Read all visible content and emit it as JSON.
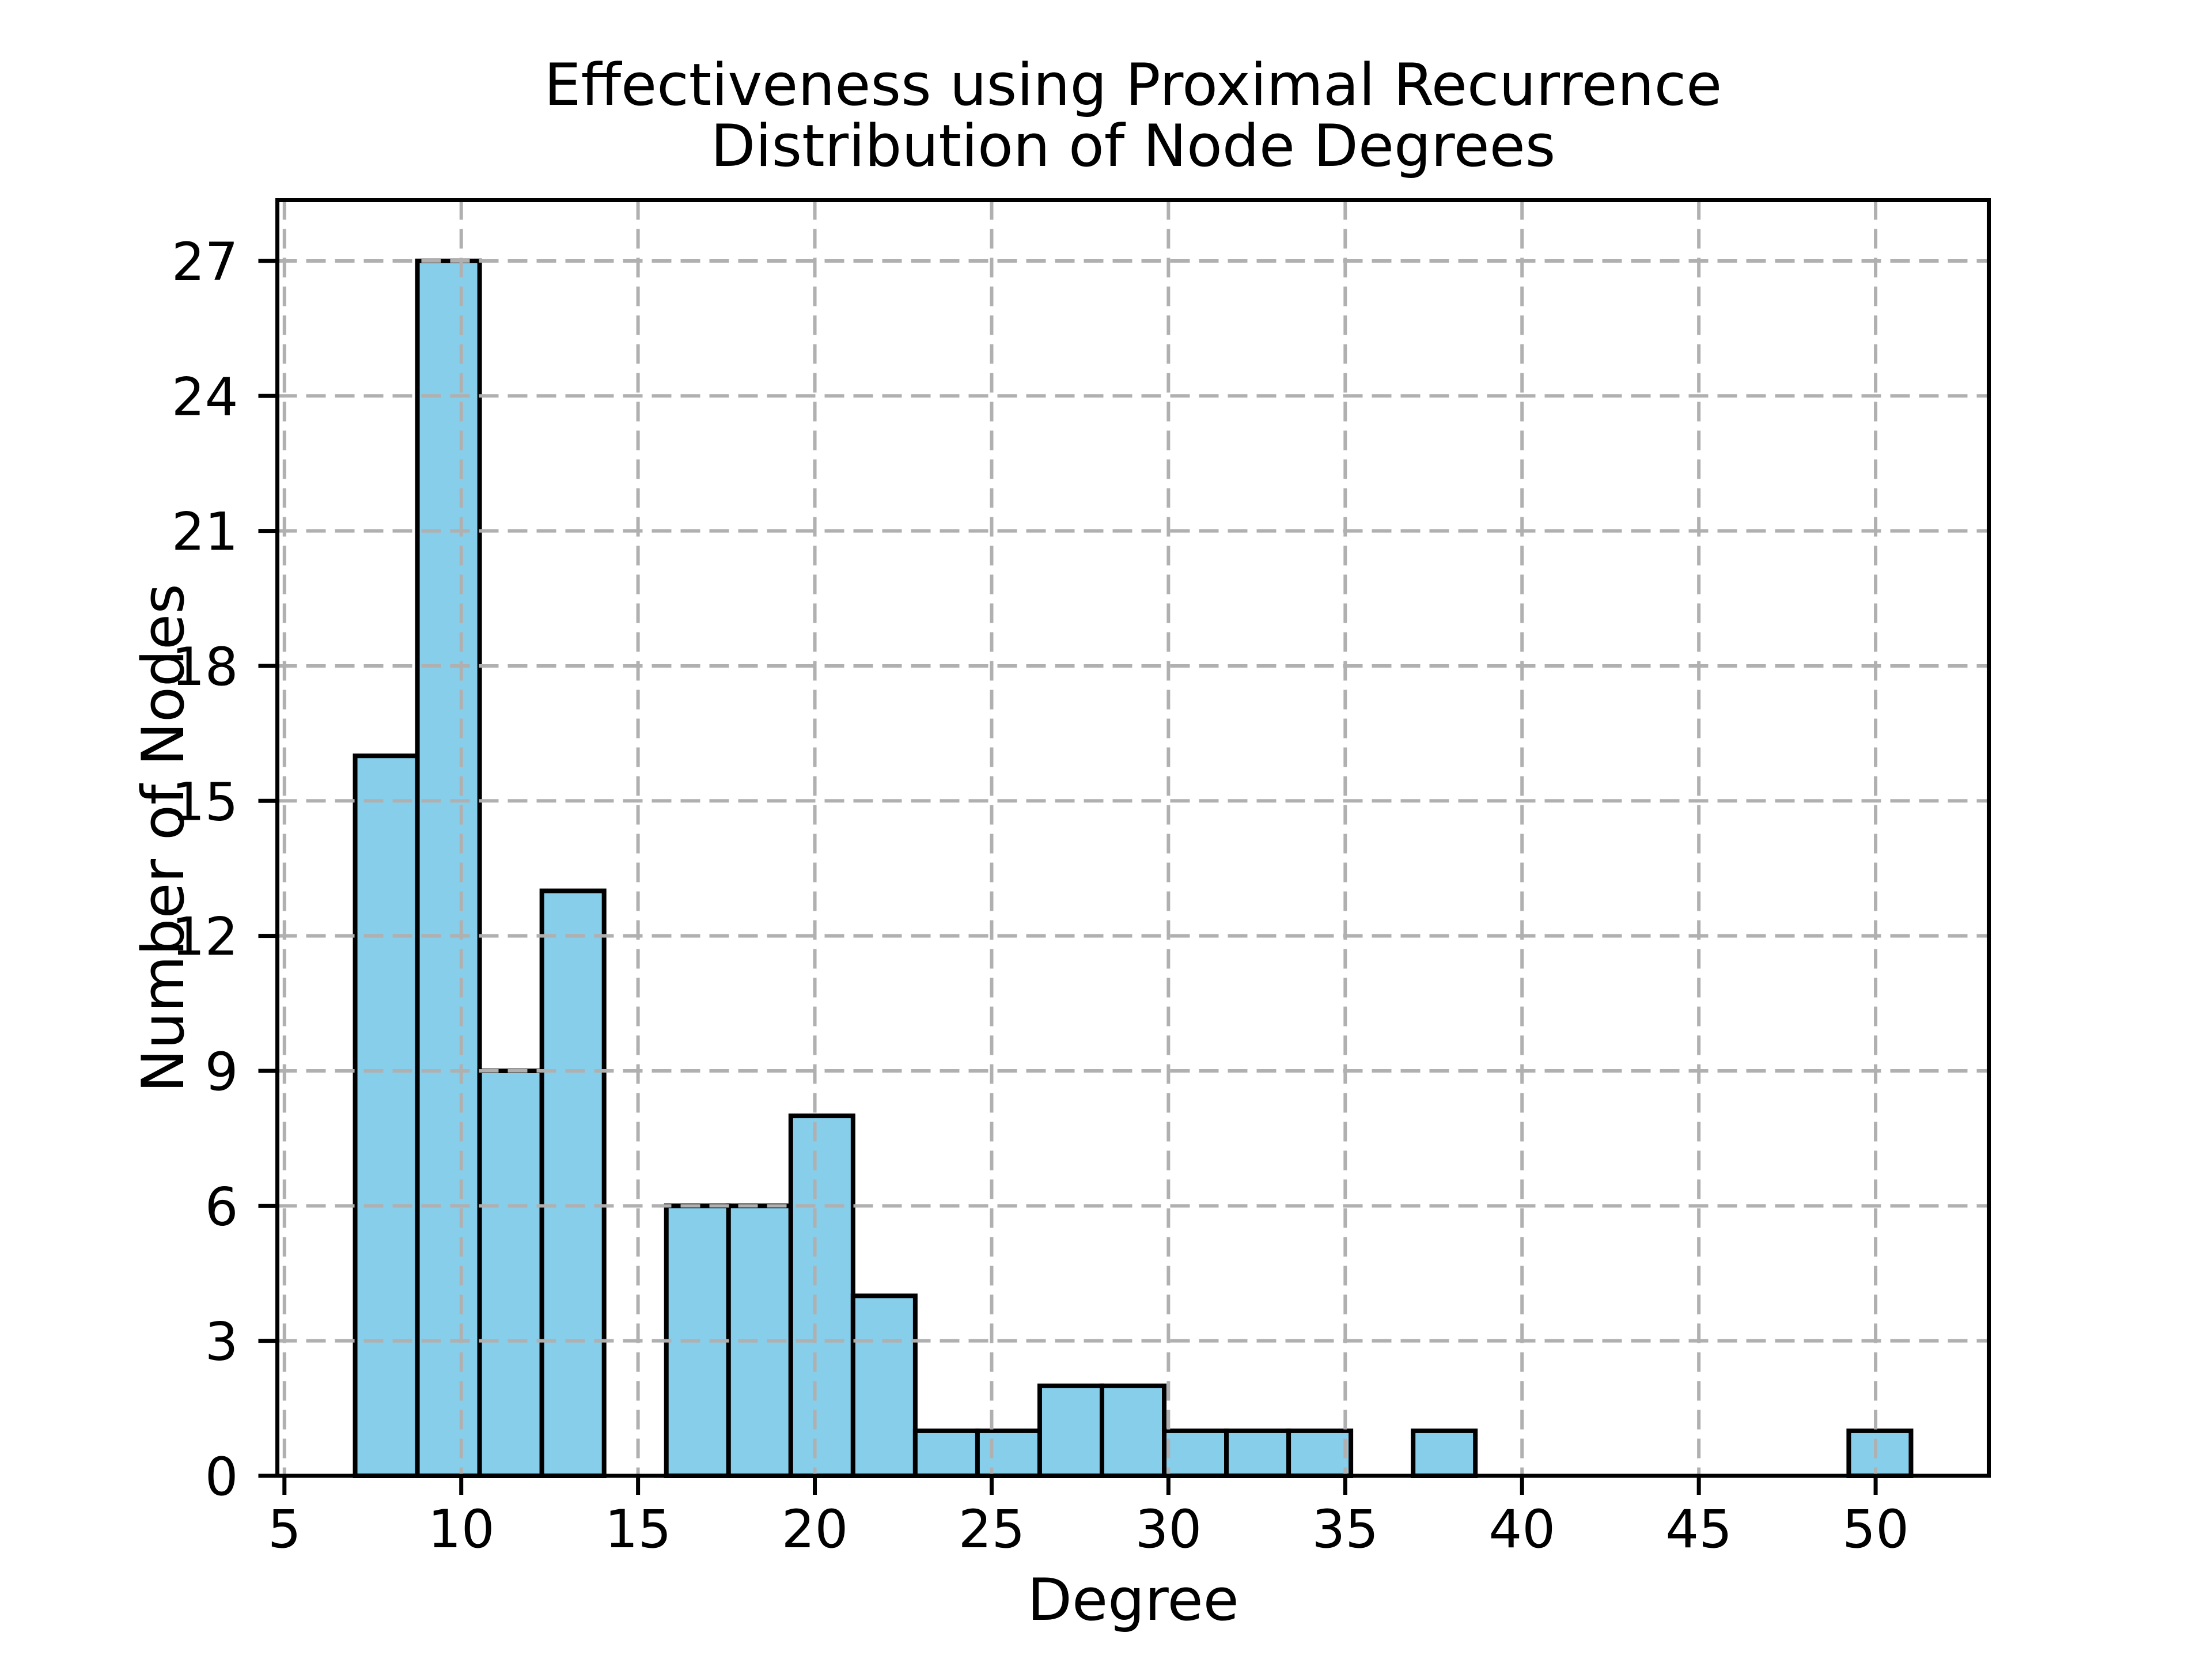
{
  "title": {
    "line1": "Effectiveness using Proximal Recurrence",
    "line2": "Distribution of Node Degrees"
  },
  "chart_data": {
    "type": "bar",
    "title": "Effectiveness using Proximal Recurrence\nDistribution of Node Degrees",
    "xlabel": "Degree",
    "ylabel": "Number of Nodes",
    "xlim": [
      4.8,
      53.2
    ],
    "ylim": [
      0,
      28.35
    ],
    "xticks": [
      5,
      10,
      15,
      20,
      25,
      30,
      35,
      40,
      45,
      50
    ],
    "yticks": [
      0,
      3,
      6,
      9,
      12,
      15,
      18,
      21,
      24,
      27
    ],
    "grid": true,
    "grid_linestyle": "dashed",
    "legend_position": "none",
    "bin_edges": [
      7.0,
      8.76,
      10.52,
      12.28,
      14.04,
      15.8,
      17.56,
      19.32,
      21.08,
      22.84,
      24.6,
      26.36,
      28.12,
      29.88,
      31.64,
      33.4,
      35.16,
      36.92,
      38.68,
      40.44,
      42.2,
      43.96,
      45.72,
      47.48,
      49.24,
      51.0
    ],
    "counts": [
      16,
      27,
      9,
      13,
      0,
      6,
      6,
      8,
      4,
      1,
      1,
      2,
      2,
      1,
      1,
      1,
      0,
      1,
      0,
      0,
      0,
      0,
      0,
      0,
      1
    ],
    "total_nodes": 100,
    "colors": {
      "bar_fill": "#87CEEB",
      "bar_edge": "#000000",
      "grid": "#b0b0b0",
      "spine": "#000000",
      "text": "#000000",
      "background": "#ffffff"
    }
  }
}
